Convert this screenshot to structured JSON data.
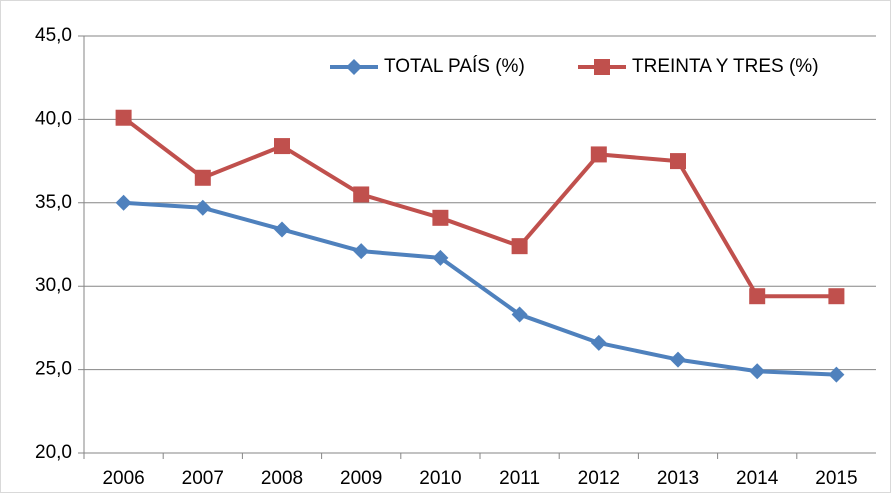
{
  "chart_data": {
    "type": "line",
    "categories": [
      "2006",
      "2007",
      "2008",
      "2009",
      "2010",
      "2011",
      "2012",
      "2013",
      "2014",
      "2015"
    ],
    "series": [
      {
        "name": "TOTAL PAÍS (%)",
        "color": "#4f81bd",
        "marker": "diamond",
        "values": [
          35.0,
          34.7,
          33.4,
          32.1,
          31.7,
          28.3,
          26.6,
          25.6,
          24.9,
          24.7
        ]
      },
      {
        "name": "TREINTA Y TRES  (%)",
        "color": "#c0504d",
        "marker": "square",
        "values": [
          40.1,
          36.5,
          38.4,
          35.5,
          34.1,
          32.4,
          37.9,
          37.5,
          29.4,
          29.4
        ]
      }
    ],
    "ylim": [
      20,
      45
    ],
    "yticks": [
      {
        "value": 20,
        "label": "20,0"
      },
      {
        "value": 25,
        "label": "25,0"
      },
      {
        "value": 30,
        "label": "30,0"
      },
      {
        "value": 35,
        "label": "35,0"
      },
      {
        "value": 40,
        "label": "40,0"
      },
      {
        "value": 45,
        "label": "45,0"
      }
    ],
    "grid": true,
    "legend": "top"
  }
}
